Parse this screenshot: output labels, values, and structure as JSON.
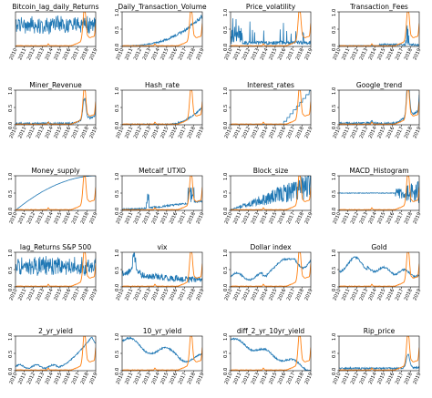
{
  "figure": {
    "colors": {
      "feature": "#1f77b4",
      "price": "#ff7f0e"
    }
  },
  "chart_data": [
    {
      "type": "line",
      "title": "Bitcoin_lag_daily_Returns",
      "x": [
        "2010",
        "2011",
        "2012",
        "2013",
        "2014",
        "2015",
        "2016",
        "2017",
        "2018",
        "2019"
      ],
      "y_ticks": [],
      "ylim": [
        0,
        1
      ],
      "series": [
        {
          "pattern": "noise-band",
          "level": 0.62,
          "amp": 0.28
        },
        {
          "pattern": "price",
          "level": 0.05
        }
      ]
    },
    {
      "type": "line",
      "title": "Daily_Transaction_Volume",
      "x": [
        "2010",
        "2011",
        "2012",
        "2013",
        "2014",
        "2015",
        "2016",
        "2017",
        "2018",
        "2019"
      ],
      "y_ticks": [
        "0.0",
        "0.5",
        "1.0"
      ],
      "ylim": [
        0,
        1
      ],
      "series": [
        {
          "pattern": "growth",
          "level": 0.85
        },
        {
          "pattern": "price",
          "level": 0.05
        }
      ]
    },
    {
      "type": "line",
      "title": "Price_volatility",
      "x": [
        "2010",
        "2011",
        "2012",
        "2013",
        "2014",
        "2015",
        "2016",
        "2017",
        "2018",
        "2019"
      ],
      "y_ticks": [
        "0.0",
        "0.5",
        "1.0"
      ],
      "ylim": [
        0,
        1
      ],
      "series": [
        {
          "pattern": "spikes",
          "level": 0.15
        },
        {
          "pattern": "price",
          "level": 0.05
        }
      ]
    },
    {
      "type": "line",
      "title": "Transaction_Fees",
      "x": [
        "2010",
        "2011",
        "2012",
        "2013",
        "2014",
        "2015",
        "2016",
        "2017",
        "2018",
        "2019"
      ],
      "y_ticks": [
        "0.0",
        "0.5",
        "1.0"
      ],
      "ylim": [
        0,
        1
      ],
      "series": [
        {
          "pattern": "late-spike",
          "level": 0.1
        },
        {
          "pattern": "price",
          "level": 0.05
        }
      ]
    },
    {
      "type": "line",
      "title": "Miner_Revenue",
      "x": [
        "2010",
        "2011",
        "2012",
        "2013",
        "2014",
        "2015",
        "2016",
        "2017",
        "2018",
        "2019"
      ],
      "y_ticks": [
        "0.0",
        "0.5",
        "1.0"
      ],
      "ylim": [
        0,
        1
      ],
      "series": [
        {
          "pattern": "follows-price",
          "level": 0.55
        },
        {
          "pattern": "price",
          "level": 0.05
        }
      ]
    },
    {
      "type": "line",
      "title": "Hash_rate",
      "x": [
        "2010",
        "2011",
        "2012",
        "2013",
        "2014",
        "2015",
        "2016",
        "2017",
        "2018",
        "2019"
      ],
      "y_ticks": [
        "0.0",
        "0.5",
        "1.0"
      ],
      "ylim": [
        0,
        1
      ],
      "series": [
        {
          "pattern": "late-growth",
          "level": 0.5
        },
        {
          "pattern": "price",
          "level": 0.05
        }
      ]
    },
    {
      "type": "line",
      "title": "Interest_rates",
      "x": [
        "2010",
        "2011",
        "2012",
        "2013",
        "2014",
        "2015",
        "2016",
        "2017",
        "2018",
        "2019"
      ],
      "y_ticks": [
        "0.0",
        "0.5",
        "1.0"
      ],
      "ylim": [
        0,
        1
      ],
      "series": [
        {
          "pattern": "steps",
          "level": 1.0
        },
        {
          "pattern": "price",
          "level": 0.05
        }
      ]
    },
    {
      "type": "line",
      "title": "Google_trend",
      "x": [
        "2010",
        "2011",
        "2012",
        "2013",
        "2014",
        "2015",
        "2016",
        "2017",
        "2018",
        "2019"
      ],
      "y_ticks": [
        "0.0",
        "0.5",
        "1.0"
      ],
      "ylim": [
        0,
        1
      ],
      "series": [
        {
          "pattern": "follows-price",
          "level": 0.95
        },
        {
          "pattern": "price",
          "level": 0.05
        }
      ]
    },
    {
      "type": "line",
      "title": "Money_supply",
      "x": [
        "2010",
        "2011",
        "2012",
        "2013",
        "2014",
        "2015",
        "2016",
        "2017",
        "2018",
        "2019"
      ],
      "y_ticks": [
        "0.0",
        "0.5",
        "1.0"
      ],
      "ylim": [
        0,
        1
      ],
      "series": [
        {
          "pattern": "concave",
          "level": 1.0
        },
        {
          "pattern": "price",
          "level": 0.05
        }
      ]
    },
    {
      "type": "line",
      "title": "Metcalf_UTXO",
      "x": [
        "2010",
        "2011",
        "2012",
        "2013",
        "2014",
        "2015",
        "2016",
        "2017",
        "2018",
        "2019"
      ],
      "y_ticks": [
        "0.0",
        "0.5",
        "1.0"
      ],
      "ylim": [
        0,
        1
      ],
      "series": [
        {
          "pattern": "utxo",
          "level": 0.6
        },
        {
          "pattern": "price",
          "level": 0.05
        }
      ]
    },
    {
      "type": "line",
      "title": "Block_size",
      "x": [
        "2010",
        "2011",
        "2012",
        "2013",
        "2014",
        "2015",
        "2016",
        "2017",
        "2018",
        "2019"
      ],
      "y_ticks": [
        "0.0",
        "0.5",
        "1.0"
      ],
      "ylim": [
        0,
        1
      ],
      "series": [
        {
          "pattern": "growing-noise",
          "level": 1.0
        },
        {
          "pattern": "price",
          "level": 0.05
        }
      ]
    },
    {
      "type": "line",
      "title": "MACD_Histogram",
      "x": [
        "2010",
        "2011",
        "2012",
        "2013",
        "2014",
        "2015",
        "2016",
        "2017",
        "2018",
        "2019"
      ],
      "y_ticks": [
        "0.0",
        "0.5",
        "1.0"
      ],
      "ylim": [
        0,
        1
      ],
      "series": [
        {
          "pattern": "macd",
          "level": 0.5
        },
        {
          "pattern": "price",
          "level": 0.05
        }
      ]
    },
    {
      "type": "line",
      "title": "lag_Returns S&P 500",
      "x": [
        "2010",
        "2011",
        "2012",
        "2013",
        "2014",
        "2015",
        "2016",
        "2017",
        "2018",
        "2019"
      ],
      "y_ticks": [
        "0.0",
        "0.5",
        "1.0"
      ],
      "ylim": [
        0,
        1
      ],
      "series": [
        {
          "pattern": "noise-band",
          "level": 0.6,
          "amp": 0.3
        },
        {
          "pattern": "price",
          "level": 0.05
        }
      ]
    },
    {
      "type": "line",
      "title": "vix",
      "x": [
        "2010",
        "2011",
        "2012",
        "2013",
        "2014",
        "2015",
        "2016",
        "2017",
        "2018",
        "2019"
      ],
      "y_ticks": [
        "0.0",
        "0.5",
        "1.0"
      ],
      "ylim": [
        0,
        1
      ],
      "series": [
        {
          "pattern": "vix",
          "level": 0.35
        },
        {
          "pattern": "price",
          "level": 0.05
        }
      ]
    },
    {
      "type": "line",
      "title": "Dollar index",
      "x": [
        "2010",
        "2011",
        "2012",
        "2013",
        "2014",
        "2015",
        "2016",
        "2017",
        "2018",
        "2019"
      ],
      "y_ticks": [
        "0.0",
        "0.5",
        "1.0"
      ],
      "ylim": [
        0,
        1
      ],
      "series": [
        {
          "pattern": "dollar",
          "level": 0.8
        },
        {
          "pattern": "price",
          "level": 0.05
        }
      ]
    },
    {
      "type": "line",
      "title": "Gold",
      "x": [
        "2010",
        "2011",
        "2012",
        "2013",
        "2014",
        "2015",
        "2016",
        "2017",
        "2018",
        "2019"
      ],
      "y_ticks": [
        "0.0",
        "0.5",
        "1.0"
      ],
      "ylim": [
        0,
        1
      ],
      "series": [
        {
          "pattern": "gold",
          "level": 0.8
        },
        {
          "pattern": "price",
          "level": 0.05
        }
      ]
    },
    {
      "type": "line",
      "title": "2_yr_yield",
      "x": [
        "2010",
        "2011",
        "2012",
        "2013",
        "2014",
        "2015",
        "2016",
        "2017",
        "2018",
        "2019"
      ],
      "y_ticks": [
        "0.0",
        "0.5",
        "1.0"
      ],
      "ylim": [
        0,
        1
      ],
      "series": [
        {
          "pattern": "rise-late",
          "level": 1.0
        },
        {
          "pattern": "price",
          "level": 0.05
        }
      ]
    },
    {
      "type": "line",
      "title": "10_yr_yield",
      "x": [
        "2010",
        "2011",
        "2012",
        "2013",
        "2014",
        "2015",
        "2016",
        "2017",
        "2018",
        "2019"
      ],
      "y_ticks": [
        "0.0",
        "0.5",
        "1.0"
      ],
      "ylim": [
        0,
        1
      ],
      "series": [
        {
          "pattern": "ten-yr",
          "level": 0.9
        },
        {
          "pattern": "price",
          "level": 0.05
        }
      ]
    },
    {
      "type": "line",
      "title": "diff_2_yr_10yr_yield",
      "x": [
        "2010",
        "2011",
        "2012",
        "2013",
        "2014",
        "2015",
        "2016",
        "2017",
        "2018",
        "2019"
      ],
      "y_ticks": [
        "0.0",
        "0.5",
        "1.0"
      ],
      "ylim": [
        0,
        1
      ],
      "series": [
        {
          "pattern": "decline",
          "level": 0.95
        },
        {
          "pattern": "price",
          "level": 0.05
        }
      ]
    },
    {
      "type": "line",
      "title": "Rip_price",
      "x": [
        "2010",
        "2011",
        "2012",
        "2013",
        "2014",
        "2015",
        "2016",
        "2017",
        "2018",
        "2019"
      ],
      "y_ticks": [
        "0.0",
        "0.5",
        "1.0"
      ],
      "ylim": [
        0,
        1
      ],
      "series": [
        {
          "pattern": "rip",
          "level": 0.3
        },
        {
          "pattern": "price",
          "level": 0.05
        }
      ]
    }
  ]
}
